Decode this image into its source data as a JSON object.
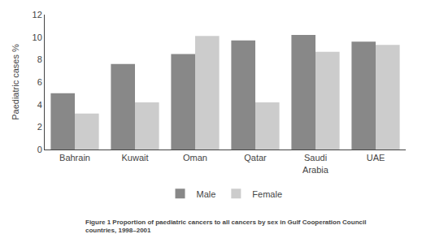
{
  "chart_data": {
    "type": "bar",
    "title": "Figure 1 Proportion of paediatric cancers to all cancers by sex in Gulf Cooperation Council\ncountries, 1998–2001",
    "ylabel": "Paediatric cases %",
    "categories": [
      "Bahrain",
      "Kuwait",
      "Oman",
      "Qatar",
      "Saudi\nArabia",
      "UAE"
    ],
    "series": [
      {
        "name": "Male",
        "color": "#888888",
        "values": [
          5.0,
          7.6,
          8.5,
          9.7,
          10.2,
          9.6
        ]
      },
      {
        "name": "Female",
        "color": "#cccccc",
        "values": [
          3.2,
          4.2,
          10.1,
          4.2,
          8.7,
          9.3
        ]
      }
    ],
    "ylim": [
      0,
      12
    ],
    "yticks": [
      0,
      2,
      4,
      6,
      8,
      10,
      12
    ],
    "grid": false,
    "legend": "bottom"
  }
}
